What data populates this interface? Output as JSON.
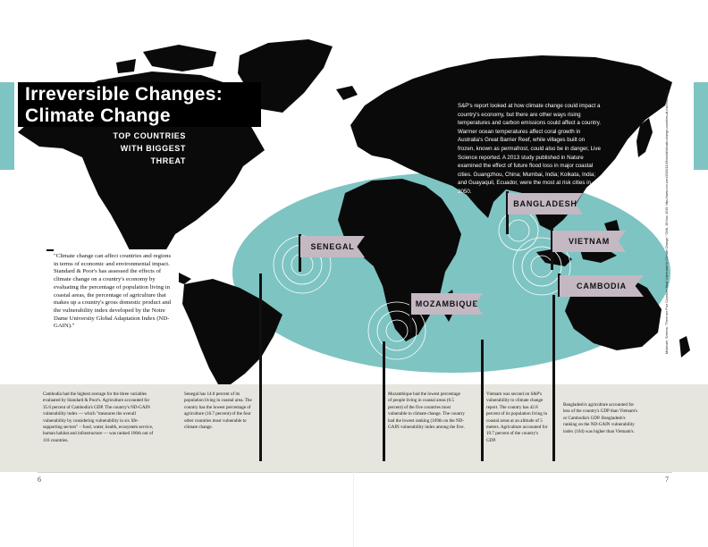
{
  "colors": {
    "teal": "#7ec4c2",
    "flag": "#c4b8c3",
    "land": "#0a0a0a",
    "band": "#e6e5de"
  },
  "header": {
    "title_line1": "Irreversible Changes:",
    "title_line2": "Climate Change",
    "subtitle_line1": "TOP COUNTRIES",
    "subtitle_line2": "WITH BIGGEST",
    "subtitle_line3": "THREAT"
  },
  "intro": "S&P's report looked at how climate change could impact a country's economy, but there are other ways rising temperatures and carbon emissions could affect a country. Warmer ocean temperatures affect coral growth in Australia's Great Barrier Reef, while villages built on frozen, known as permafrost, could also be in danger, Live Science reported. A 2013 study published in Nature examined the effect of future flood loss in major coastal cities. Guangzhou, China; Mumbai, India; Kolkata, India; and Guayaquil, Ecuador, were the most at risk cities in 2050.",
  "quote": "\"Climate change can affect countries and regions in terms of economic and environmental impact. Standard & Poor's has assessed the effects of climate change on a country's economy by evaluating the percentage of population living in coastal areas, the percentage of agriculture that makes up a country's gross domestic product and the vulnerability index developed by the Notre Dame University Global Adaptation Index (ND-GAIN).\"",
  "flags": {
    "senegal": "SENEGAL",
    "mozambique": "MOZAMBIQUE",
    "bangladesh": "BANGLADESH",
    "vietnam": "VIETNAM",
    "cambodia": "CAMBODIA"
  },
  "columns": {
    "cambodia": "Cambodia had the highest average for the three variables evaluated by Standard & Poor's. Agriculture accounted for 35.6 percent of Cambodia's GDP. The country's ND-GAIN vulnerability index — which \"measures the overall vulnerability by considering vulnerability in six life-supporting sectors\" – food, water, health, ecosystem service, human habitat and infrastructure — was ranked 106th out of 116 countries.",
    "senegal": "Senegal has 14.8 percent of its population living in coastal area. The country has the lowest percentage of agriculture (16.7 percent) of the four other countries most vulnerable to climate change.",
    "mozambique": "Mozambique had the lowest percentage of people living in coastal areas (6.5 percent) of the five countries most vulnerable to climate change. The country had the lowest ranking (109th on the ND-GAIN vulnerability index among the five.",
    "vietnam": "Vietnam was second on S&P's vulnerability to climate change report. The country has 42.8 percent of its population living in coastal areas at an altitude of 5 meters. Agriculture accounted for 19.7 percent of the country's GDP.",
    "bangladesh": "Bangladesh's agriculture accounted for less of the country's GDP than Vietnam's or Cambodia's GDP. Bangladesh's ranking on the ND-GAIN vulnerability index (104) was higher than Vietnam's."
  },
  "side_note": "Mckenzie, Sheena. \"There are Five Countries Most Vulnerable to Climate Change.\" CNN, 19 Nov. 2015.  http://www.cnn.com/2015/11/19/world/climate-change-countries-at-risk/index.html",
  "pages": {
    "left": "6",
    "right": "7"
  }
}
